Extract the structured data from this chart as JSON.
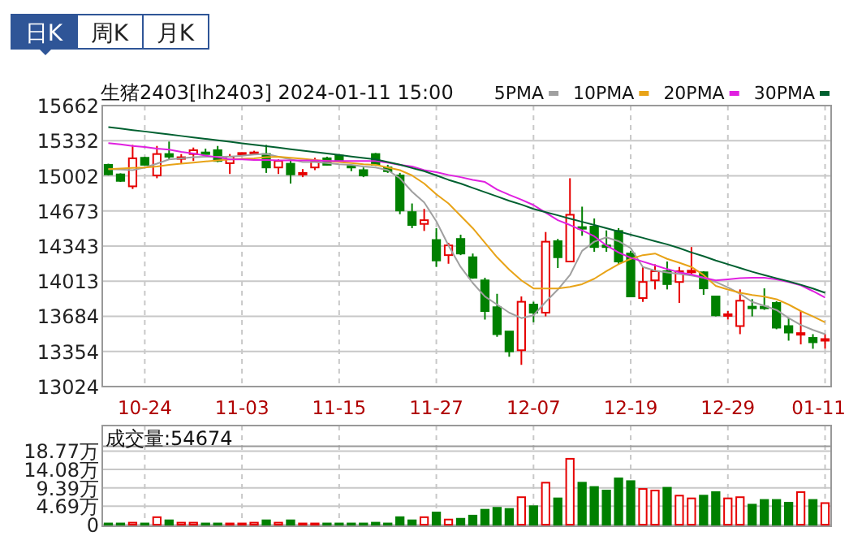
{
  "chart_data": [
    {
      "type": "candlestick",
      "title": "生猪2403[lh2403] 2024-01-11 15:00",
      "annotations": [
        "日K",
        "周K",
        "月K"
      ],
      "categories": [
        null,
        null,
        null,
        "10-24",
        null,
        null,
        null,
        null,
        null,
        null,
        null,
        "11-03",
        null,
        null,
        null,
        null,
        null,
        null,
        null,
        "11-15",
        null,
        null,
        null,
        null,
        null,
        null,
        null,
        "11-27",
        null,
        null,
        null,
        null,
        null,
        null,
        null,
        "12-07",
        null,
        null,
        null,
        null,
        null,
        null,
        null,
        "12-19",
        null,
        null,
        null,
        null,
        null,
        null,
        null,
        "12-29",
        null,
        null,
        null,
        null,
        null,
        null,
        null,
        "01-11"
      ],
      "ohlc": [
        [
          15106,
          15116,
          15006,
          15016
        ],
        [
          15016,
          15026,
          14945,
          14955
        ],
        [
          14904,
          15293,
          14879,
          15167
        ],
        [
          15172,
          15182,
          15101,
          15106
        ],
        [
          15006,
          15283,
          14980,
          15207
        ],
        [
          15207,
          15324,
          15157,
          15182
        ],
        [
          15167,
          15207,
          15121,
          15177
        ],
        [
          15207,
          15268,
          15142,
          15243
        ],
        [
          15222,
          15258,
          15212,
          15217
        ],
        [
          15243,
          15283,
          15131,
          15142
        ],
        [
          15121,
          15207,
          15020,
          15182
        ],
        [
          15212,
          15222,
          15192,
          15217
        ],
        [
          15217,
          15238,
          15197,
          15222
        ],
        [
          15207,
          15293,
          15030,
          15081
        ],
        [
          15081,
          15157,
          15020,
          15142
        ],
        [
          15116,
          15157,
          14930,
          15016
        ],
        [
          15020,
          15066,
          14990,
          15030
        ],
        [
          15081,
          15172,
          15056,
          15142
        ],
        [
          15167,
          15182,
          15101,
          15106
        ],
        [
          15192,
          15207,
          15131,
          15142
        ],
        [
          15096,
          15106,
          15046,
          15086
        ],
        [
          15056,
          15081,
          14990,
          15006
        ],
        [
          15207,
          15217,
          15096,
          15106
        ],
        [
          15081,
          15106,
          15030,
          15046
        ],
        [
          15006,
          15030,
          14642,
          14677
        ],
        [
          14662,
          14743,
          14511,
          14541
        ],
        [
          14551,
          14692,
          14485,
          14586
        ],
        [
          14400,
          14511,
          14147,
          14208
        ],
        [
          14258,
          14374,
          14177,
          14349
        ],
        [
          14410,
          14450,
          14258,
          14273
        ],
        [
          14238,
          14273,
          14036,
          14046
        ],
        [
          14021,
          14046,
          13653,
          13733
        ],
        [
          13769,
          13895,
          13491,
          13516
        ],
        [
          13541,
          13541,
          13304,
          13354
        ],
        [
          13365,
          13870,
          13228,
          13820
        ],
        [
          13794,
          13820,
          13628,
          13718
        ],
        [
          13718,
          14475,
          13683,
          14384
        ],
        [
          14389,
          14410,
          14137,
          14238
        ],
        [
          14198,
          14980,
          14198,
          14637
        ],
        [
          14521,
          14713,
          14440,
          14511
        ],
        [
          14526,
          14602,
          14289,
          14334
        ],
        [
          14349,
          14490,
          14289,
          14339
        ],
        [
          14485,
          14511,
          14172,
          14198
        ],
        [
          14273,
          14299,
          13870,
          13870
        ],
        [
          13855,
          14147,
          13819,
          14006
        ],
        [
          14021,
          14172,
          13936,
          14107
        ],
        [
          14107,
          14198,
          13936,
          13986
        ],
        [
          14006,
          14147,
          13809,
          14107
        ],
        [
          14107,
          14334,
          14072,
          14112
        ],
        [
          14097,
          14107,
          13885,
          13946
        ],
        [
          13870,
          13870,
          13683,
          13693
        ],
        [
          13693,
          13733,
          13653,
          13703
        ],
        [
          13592,
          13936,
          13516,
          13830
        ],
        [
          13774,
          13845,
          13683,
          13769
        ],
        [
          13774,
          13946,
          13744,
          13764
        ],
        [
          13809,
          13825,
          13562,
          13577
        ],
        [
          13592,
          13667,
          13455,
          13531
        ],
        [
          13516,
          13733,
          13420,
          13526
        ],
        [
          13481,
          13516,
          13379,
          13440
        ],
        [
          13460,
          13516,
          13379,
          13470
        ]
      ],
      "colors": [
        "#008000",
        "#008000",
        "#e60000",
        "#008000",
        "#e60000",
        "#008000",
        "#e60000",
        "#e60000",
        "#008000",
        "#008000",
        "#e60000",
        "#e60000",
        "#e60000",
        "#008000",
        "#e60000",
        "#008000",
        "#e60000",
        "#e60000",
        "#008000",
        "#008000",
        "#008000",
        "#008000",
        "#008000",
        "#008000",
        "#008000",
        "#008000",
        "#e60000",
        "#008000",
        "#e60000",
        "#008000",
        "#008000",
        "#008000",
        "#008000",
        "#008000",
        "#e60000",
        "#008000",
        "#e60000",
        "#008000",
        "#e60000",
        "#008000",
        "#008000",
        "#008000",
        "#008000",
        "#008000",
        "#e60000",
        "#e60000",
        "#008000",
        "#e60000",
        "#e60000",
        "#008000",
        "#008000",
        "#e60000",
        "#e60000",
        "#008000",
        "#008000",
        "#008000",
        "#008000",
        "#e60000",
        "#008000",
        "#e60000"
      ],
      "series": [
        {
          "type": "line",
          "name": "5PMA",
          "color": "#a0a0a0",
          "values": [
            15066,
            15061,
            15056,
            15081,
            15117,
            15157,
            15167,
            15177,
            15182,
            15182,
            15182,
            15192,
            15203,
            15208,
            15182,
            15157,
            15132,
            15132,
            15122,
            15112,
            15106,
            15091,
            15081,
            15056,
            14980,
            14854,
            14753,
            14576,
            14349,
            14147,
            13996,
            13869,
            13794,
            13718,
            13667,
            13693,
            13819,
            13935,
            14071,
            14298,
            14384,
            14425,
            14389,
            14324,
            14147,
            14112,
            14096,
            14081,
            14066,
            14046,
            14006,
            13955,
            13895,
            13819,
            13783,
            13743,
            13667,
            13602,
            13556,
            13516
          ]
        },
        {
          "type": "line",
          "name": "10PMA",
          "color": "#e8a317",
          "values": [
            15066,
            15071,
            15076,
            15081,
            15091,
            15106,
            15117,
            15127,
            15137,
            15147,
            15157,
            15162,
            15167,
            15177,
            15182,
            15172,
            15162,
            15152,
            15142,
            15132,
            15122,
            15112,
            15106,
            15081,
            15056,
            15006,
            14930,
            14829,
            14743,
            14627,
            14511,
            14374,
            14238,
            14122,
            14021,
            13945,
            13945,
            13945,
            13960,
            13985,
            14036,
            14107,
            14172,
            14223,
            14258,
            14273,
            14223,
            14187,
            14147,
            14071,
            13970,
            13935,
            13905,
            13884,
            13869,
            13844,
            13794,
            13733,
            13682,
            13627
          ]
        },
        {
          "type": "line",
          "name": "20PMA",
          "color": "#e020e0",
          "values": [
            15309,
            15298,
            15283,
            15273,
            15258,
            15248,
            15228,
            15213,
            15192,
            15177,
            15157,
            15157,
            15152,
            15152,
            15147,
            15147,
            15147,
            15147,
            15142,
            15142,
            15142,
            15142,
            15142,
            15127,
            15106,
            15091,
            15056,
            15036,
            15011,
            14990,
            14965,
            14945,
            14874,
            14824,
            14778,
            14728,
            14657,
            14586,
            14541,
            14490,
            14435,
            14349,
            14283,
            14233,
            14197,
            14162,
            14127,
            14096,
            14076,
            14046,
            14021,
            14031,
            14041,
            14046,
            14046,
            14031,
            14006,
            13975,
            13920,
            13859
          ]
        },
        {
          "type": "line",
          "name": "30PMA",
          "color": "#006030",
          "values": [
            15460,
            15446,
            15432,
            15419,
            15405,
            15391,
            15377,
            15363,
            15350,
            15336,
            15322,
            15308,
            15294,
            15281,
            15267,
            15253,
            15239,
            15225,
            15212,
            15198,
            15184,
            15170,
            15157,
            15132,
            15107,
            15076,
            15046,
            15006,
            14965,
            14930,
            14889,
            14849,
            14809,
            14768,
            14733,
            14692,
            14662,
            14632,
            14601,
            14571,
            14541,
            14511,
            14480,
            14450,
            14420,
            14389,
            14359,
            14324,
            14283,
            14248,
            14208,
            14172,
            14137,
            14102,
            14071,
            14041,
            14011,
            13980,
            13945,
            13905
          ]
        }
      ],
      "ylim": [
        13024,
        15662
      ],
      "yticks": [
        13024,
        13354,
        13684,
        14013,
        14343,
        14673,
        15002,
        15332,
        15662
      ],
      "grid": true,
      "legend": "top right"
    },
    {
      "type": "bar",
      "title": "成交量:54674",
      "categories": [
        null,
        null,
        null,
        null,
        null,
        null,
        null,
        null,
        null,
        null,
        null,
        null,
        null,
        null,
        null,
        null,
        null,
        null,
        null,
        null,
        null,
        null,
        null,
        null,
        null,
        null,
        null,
        null,
        null,
        null,
        null,
        null,
        null,
        null,
        null,
        null,
        null,
        null,
        null,
        null,
        null,
        null,
        null,
        null,
        null,
        null,
        null,
        null,
        null,
        null,
        null,
        null,
        null,
        null,
        null,
        null,
        null,
        null,
        null,
        null
      ],
      "values": [
        0.3,
        0.3,
        0.5,
        0.3,
        1.9,
        1.1,
        0.5,
        0.5,
        0.3,
        0.3,
        0.3,
        0.3,
        0.5,
        1.1,
        0.5,
        1.1,
        0.3,
        0.3,
        0.3,
        0.3,
        0.3,
        0.3,
        0.5,
        0.3,
        1.9,
        1.1,
        1.9,
        3.1,
        1.3,
        1.5,
        2.3,
        3.8,
        4.3,
        4.0,
        7.0,
        4.7,
        10.7,
        6.7,
        16.8,
        10.7,
        9.6,
        8.7,
        11.8,
        11.1,
        9.1,
        8.7,
        9.4,
        7.4,
        6.7,
        7.4,
        8.3,
        6.7,
        7.0,
        5.1,
        6.3,
        6.3,
        5.6,
        8.3,
        6.3,
        5.5
      ],
      "colors": [
        "#008000",
        "#008000",
        "#e60000",
        "#008000",
        "#e60000",
        "#008000",
        "#e60000",
        "#e60000",
        "#008000",
        "#008000",
        "#e60000",
        "#e60000",
        "#e60000",
        "#008000",
        "#e60000",
        "#008000",
        "#e60000",
        "#e60000",
        "#008000",
        "#008000",
        "#008000",
        "#008000",
        "#008000",
        "#008000",
        "#008000",
        "#008000",
        "#e60000",
        "#008000",
        "#e60000",
        "#008000",
        "#008000",
        "#008000",
        "#008000",
        "#008000",
        "#e60000",
        "#008000",
        "#e60000",
        "#008000",
        "#e60000",
        "#008000",
        "#008000",
        "#008000",
        "#008000",
        "#008000",
        "#e60000",
        "#e60000",
        "#008000",
        "#e60000",
        "#e60000",
        "#008000",
        "#008000",
        "#e60000",
        "#e60000",
        "#008000",
        "#008000",
        "#008000",
        "#008000",
        "#e60000",
        "#008000",
        "#e60000"
      ],
      "ylim": [
        0,
        18.77
      ],
      "yticks": [
        0,
        {
          "value": 4.69,
          "label": "4.69万"
        },
        {
          "value": 9.39,
          "label": "9.39万"
        },
        {
          "value": 14.08,
          "label": "14.08万"
        },
        {
          "value": 18.77,
          "label": "18.77万"
        }
      ],
      "grid": true,
      "tick_labels": "y"
    }
  ]
}
